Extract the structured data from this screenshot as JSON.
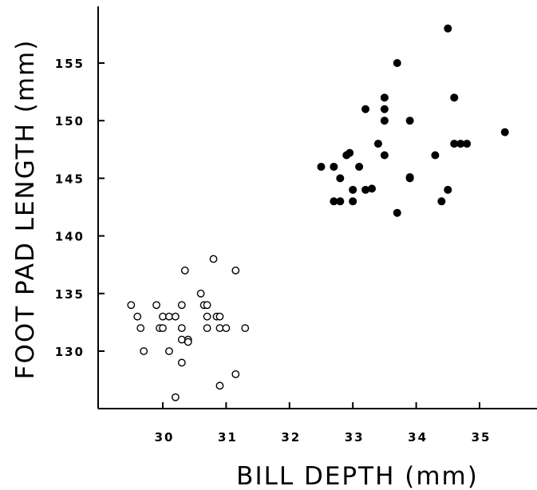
{
  "chart_data": {
    "type": "scatter",
    "title": "",
    "xlabel": "BILL DEPTH (mm)",
    "ylabel": "FOOT PAD LENGTH (mm)",
    "xlim": [
      29.0,
      36.0
    ],
    "ylim": [
      125.0,
      160.0
    ],
    "x_ticks": [
      30,
      31,
      32,
      33,
      34,
      35
    ],
    "x_tick_labels": [
      "30",
      "31",
      "32",
      "33",
      "34",
      "35"
    ],
    "y_ticks": [
      130,
      135,
      140,
      145,
      150,
      155
    ],
    "y_tick_labels": [
      "130",
      "135",
      "140",
      "145",
      "150",
      "155"
    ],
    "grid": false,
    "legend": "none",
    "series": [
      {
        "marker": "open-circle",
        "color": "#000000",
        "points": [
          [
            29.5,
            134
          ],
          [
            29.6,
            133
          ],
          [
            29.65,
            132
          ],
          [
            29.7,
            130
          ],
          [
            29.9,
            134
          ],
          [
            29.95,
            132
          ],
          [
            30.0,
            132
          ],
          [
            30.0,
            133
          ],
          [
            30.1,
            133
          ],
          [
            30.1,
            130
          ],
          [
            30.2,
            133
          ],
          [
            30.2,
            126
          ],
          [
            30.3,
            134
          ],
          [
            30.3,
            132
          ],
          [
            30.3,
            131
          ],
          [
            30.3,
            129
          ],
          [
            30.35,
            137
          ],
          [
            30.4,
            131
          ],
          [
            30.4,
            130.8
          ],
          [
            30.6,
            135
          ],
          [
            30.65,
            134
          ],
          [
            30.7,
            134
          ],
          [
            30.7,
            133
          ],
          [
            30.7,
            132
          ],
          [
            30.8,
            138
          ],
          [
            30.85,
            133
          ],
          [
            30.9,
            133
          ],
          [
            30.9,
            132
          ],
          [
            30.9,
            127
          ],
          [
            31.0,
            132
          ],
          [
            31.15,
            137
          ],
          [
            31.15,
            128
          ],
          [
            31.3,
            132
          ]
        ]
      },
      {
        "marker": "filled-circle",
        "color": "#000000",
        "points": [
          [
            32.5,
            146
          ],
          [
            32.7,
            146
          ],
          [
            32.7,
            143
          ],
          [
            32.8,
            145
          ],
          [
            32.8,
            143
          ],
          [
            32.9,
            147
          ],
          [
            32.95,
            147.2
          ],
          [
            33.0,
            144
          ],
          [
            33.0,
            143
          ],
          [
            33.1,
            146
          ],
          [
            33.2,
            151
          ],
          [
            33.2,
            144
          ],
          [
            33.3,
            144.1
          ],
          [
            33.4,
            148
          ],
          [
            33.5,
            152
          ],
          [
            33.5,
            151
          ],
          [
            33.5,
            150
          ],
          [
            33.5,
            147
          ],
          [
            33.7,
            155
          ],
          [
            33.7,
            142
          ],
          [
            33.9,
            150
          ],
          [
            33.9,
            145
          ],
          [
            33.9,
            145.1
          ],
          [
            34.3,
            147
          ],
          [
            34.4,
            143
          ],
          [
            34.5,
            158
          ],
          [
            34.5,
            144
          ],
          [
            34.6,
            152
          ],
          [
            34.6,
            148
          ],
          [
            34.7,
            148
          ],
          [
            34.8,
            148
          ],
          [
            35.4,
            149
          ]
        ]
      }
    ]
  }
}
